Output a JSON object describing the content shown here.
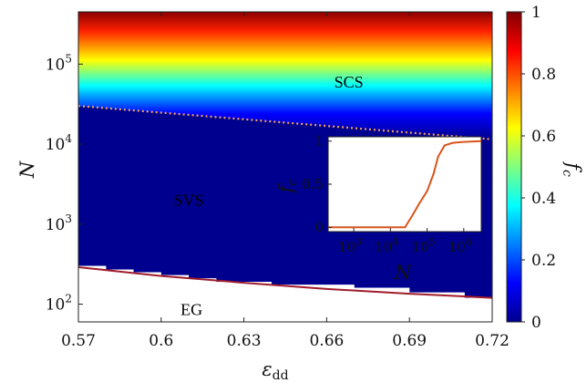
{
  "chart_data": [
    {
      "type": "heatmap",
      "title": "",
      "xlabel": "ε",
      "xlabel_sub": "dd",
      "ylabel": "N",
      "x_ticks": [
        "0.57",
        "0.6",
        "0.63",
        "0.66",
        "0.69",
        "0.72"
      ],
      "y_scale": "log",
      "y_ticks": [
        {
          "base": "10",
          "exp": "2",
          "value": 100
        },
        {
          "base": "10",
          "exp": "3",
          "value": 1000
        },
        {
          "base": "10",
          "exp": "4",
          "value": 10000
        },
        {
          "base": "10",
          "exp": "5",
          "value": 100000
        }
      ],
      "xlim": [
        0.57,
        0.72
      ],
      "ylim": [
        60,
        450000
      ],
      "regions": [
        {
          "label": "SCS",
          "x": 0.668,
          "y": 60000
        },
        {
          "label": "SVS",
          "x": 0.61,
          "y": 2000
        },
        {
          "label": "EG",
          "x": 0.611,
          "y": 85
        }
      ],
      "colorbar": {
        "label": "f",
        "label_sub": "c",
        "range": [
          0,
          1
        ],
        "ticks": [
          "0",
          "0.2",
          "0.4",
          "0.6",
          "0.8",
          "1"
        ],
        "colormap": "jet"
      },
      "boundaries": [
        {
          "name": "SCS-SVS boundary",
          "style": "dotted",
          "color": "#f5a05a",
          "x": [
            0.57,
            0.72
          ],
          "y": [
            30000,
            11500
          ]
        },
        {
          "name": "EG boundary",
          "style": "solid",
          "color": "#a01c2c",
          "x": [
            0.57,
            0.6,
            0.63,
            0.66,
            0.69,
            0.72
          ],
          "y": [
            290,
            225,
            185,
            155,
            135,
            120
          ]
        }
      ],
      "eg_step_edges": {
        "x": [
          0.57,
          0.58,
          0.59,
          0.6,
          0.61,
          0.62,
          0.64,
          0.67,
          0.69,
          0.71,
          0.72
        ],
        "y": [
          300,
          270,
          250,
          230,
          210,
          190,
          175,
          160,
          140,
          120,
          120
        ]
      },
      "colors": {
        "svs": "#00008f",
        "eg": "#ffffff"
      }
    },
    {
      "type": "line",
      "title": "",
      "xlabel": "N",
      "ylabel": "f",
      "ylabel_sub": "c",
      "x_scale": "log",
      "xlim": [
        200,
        3000000
      ],
      "ylim": [
        -0.05,
        1.05
      ],
      "x_ticks": [
        {
          "base": "10",
          "exp": "3",
          "value": 1000
        },
        {
          "base": "10",
          "exp": "4",
          "value": 10000
        },
        {
          "base": "10",
          "exp": "5",
          "value": 100000
        },
        {
          "base": "10",
          "exp": "6",
          "value": 1000000
        }
      ],
      "y_ticks": [
        "0",
        "0.5",
        "1"
      ],
      "series": [
        {
          "color": "#d9541a",
          "x": [
            200,
            1000,
            10000,
            25000,
            40000,
            60000,
            100000,
            150000,
            200000,
            300000,
            500000,
            1000000,
            3000000
          ],
          "y": [
            0,
            0,
            0,
            0,
            0.14,
            0.27,
            0.42,
            0.62,
            0.82,
            0.95,
            0.98,
            0.99,
            1.0
          ]
        }
      ]
    }
  ]
}
